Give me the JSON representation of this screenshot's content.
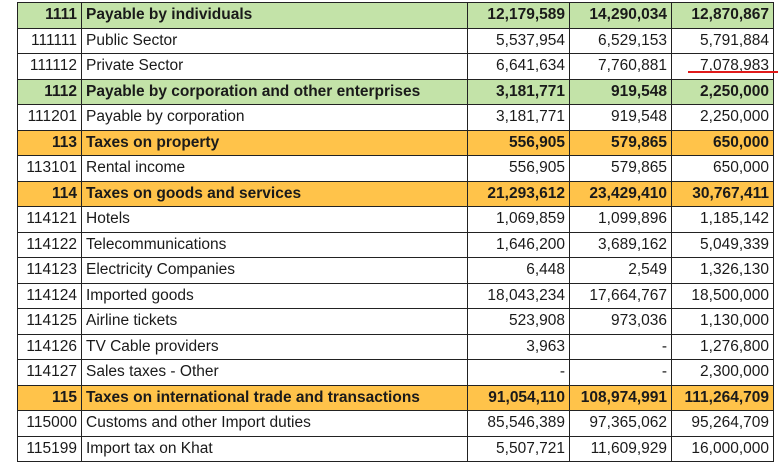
{
  "rows": [
    {
      "code": "1111",
      "name": "Payable by individuals",
      "v1": "12,179,589",
      "v2": "14,290,034",
      "v3": "12,870,867",
      "style": "green"
    },
    {
      "code": "111111",
      "name": "Public Sector",
      "v1": "5,537,954",
      "v2": "6,529,153",
      "v3": "5,791,884",
      "style": ""
    },
    {
      "code": "111112",
      "name": "Private Sector",
      "v1": "6,641,634",
      "v2": "7,760,881",
      "v3": "7,078,983",
      "style": ""
    },
    {
      "code": "1112",
      "name": "Payable by corporation and other enterprises",
      "v1": "3,181,771",
      "v2": "919,548",
      "v3": "2,250,000",
      "style": "green"
    },
    {
      "code": "111201",
      "name": "Payable by corporation",
      "v1": "3,181,771",
      "v2": "919,548",
      "v3": "2,250,000",
      "style": ""
    },
    {
      "code": "113",
      "name": "Taxes on property",
      "v1": "556,905",
      "v2": "579,865",
      "v3": "650,000",
      "style": "orange"
    },
    {
      "code": "113101",
      "name": "Rental income",
      "v1": "556,905",
      "v2": "579,865",
      "v3": "650,000",
      "style": ""
    },
    {
      "code": "114",
      "name": "Taxes on goods and services",
      "v1": "21,293,612",
      "v2": "23,429,410",
      "v3": "30,767,411",
      "style": "orange"
    },
    {
      "code": "114121",
      "name": "Hotels",
      "v1": "1,069,859",
      "v2": "1,099,896",
      "v3": "1,185,142",
      "style": ""
    },
    {
      "code": "114122",
      "name": "Telecommunications",
      "v1": "1,646,200",
      "v2": "3,689,162",
      "v3": "5,049,339",
      "style": ""
    },
    {
      "code": "114123",
      "name": "Electricity Companies",
      "v1": "6,448",
      "v2": "2,549",
      "v3": "1,326,130",
      "style": ""
    },
    {
      "code": "114124",
      "name": "Imported goods",
      "v1": "18,043,234",
      "v2": "17,664,767",
      "v3": "18,500,000",
      "style": ""
    },
    {
      "code": "114125",
      "name": "Airline tickets",
      "v1": "523,908",
      "v2": "973,036",
      "v3": "1,130,000",
      "style": ""
    },
    {
      "code": "114126",
      "name": "TV Cable providers",
      "v1": "3,963",
      "v2": "-",
      "v3": "1,276,800",
      "style": ""
    },
    {
      "code": "114127",
      "name": "Sales taxes - Other",
      "v1": "-",
      "v2": "-",
      "v3": "2,300,000",
      "style": ""
    },
    {
      "code": "115",
      "name": "Taxes on international trade and transactions",
      "v1": "91,054,110",
      "v2": "108,974,991",
      "v3": "111,264,709",
      "style": "orange"
    },
    {
      "code": "115000",
      "name": "Customs and other Import duties",
      "v1": "85,546,389",
      "v2": "97,365,062",
      "v3": "95,264,709",
      "style": ""
    },
    {
      "code": "115199",
      "name": "Import tax on Khat",
      "v1": "5,507,721",
      "v2": "11,609,929",
      "v3": "16,000,000",
      "style": ""
    }
  ],
  "colors": {
    "green_row": "#c3e3a8",
    "orange_row": "#ffc34a",
    "annotation": "#e01a1a"
  }
}
